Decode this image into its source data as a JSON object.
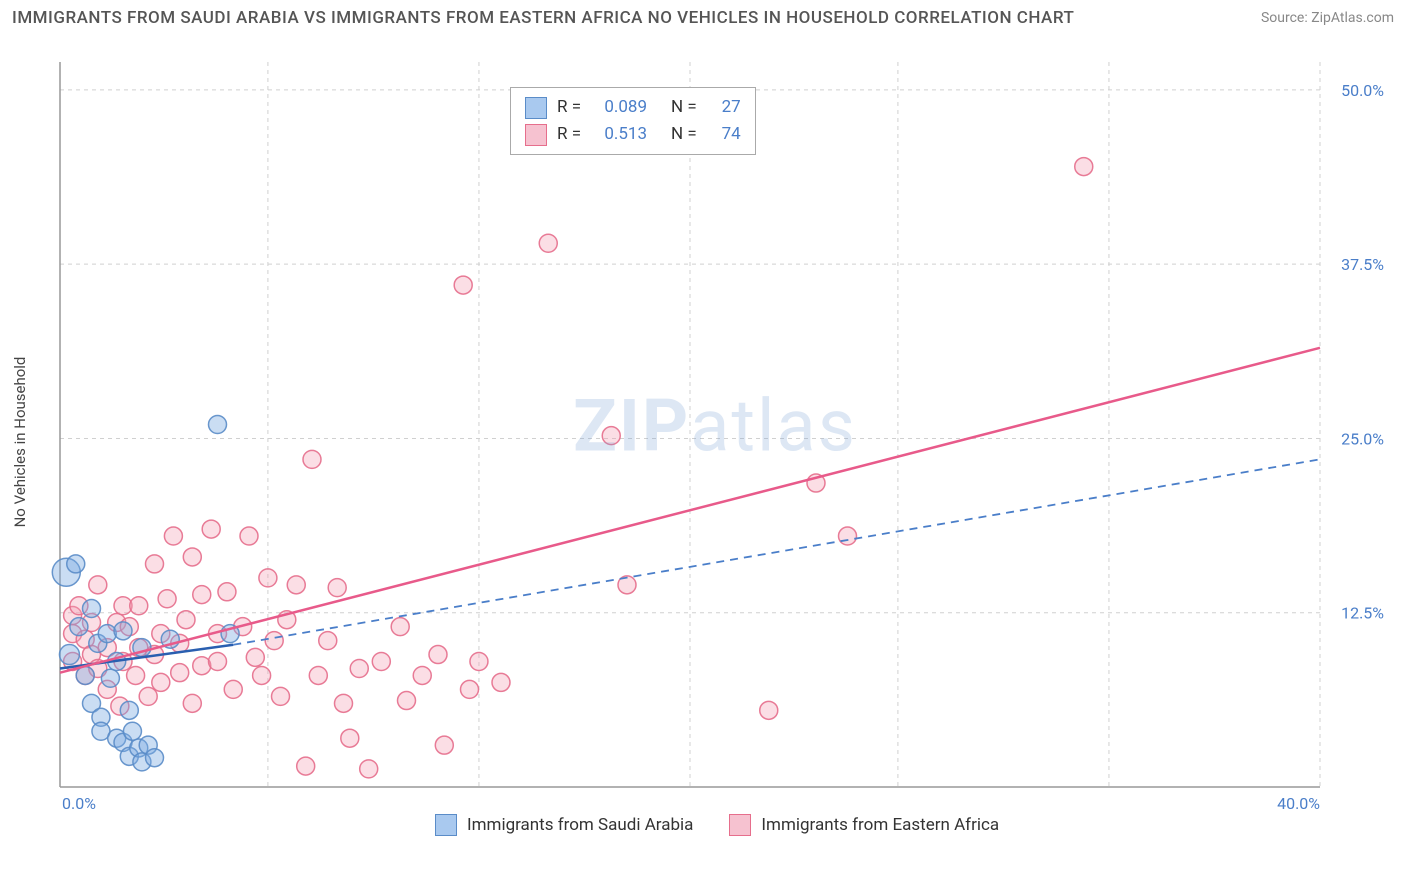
{
  "header": {
    "title": "IMMIGRANTS FROM SAUDI ARABIA VS IMMIGRANTS FROM EASTERN AFRICA NO VEHICLES IN HOUSEHOLD CORRELATION CHART",
    "source": "Source: ZipAtlas.com"
  },
  "chart": {
    "type": "scatter",
    "ylabel": "No Vehicles in Household",
    "watermark": "ZIPatlas",
    "xlim": [
      0,
      40
    ],
    "ylim": [
      0,
      52
    ],
    "x_ticks": [
      {
        "v": 0.0,
        "label": "0.0%"
      },
      {
        "v": 40.0,
        "label": "40.0%"
      }
    ],
    "y_ticks": [
      {
        "v": 12.5,
        "label": "12.5%"
      },
      {
        "v": 25.0,
        "label": "25.0%"
      },
      {
        "v": 37.5,
        "label": "37.5%"
      },
      {
        "v": 50.0,
        "label": "50.0%"
      }
    ],
    "x_grid": [
      0,
      6.6,
      13.3,
      20,
      26.6,
      33.3,
      40
    ],
    "background_color": "#ffffff",
    "grid_color": "#d0d0d0",
    "series": [
      {
        "name": "Immigrants from Saudi Arabia",
        "color_fill": "rgba(122,170,224,0.4)",
        "color_stroke": "rgba(90,140,200,0.9)",
        "swatch_fill": "#a9c9ef",
        "swatch_stroke": "#5a8cc8",
        "marker": "circle",
        "marker_r": 9,
        "R": "0.089",
        "N": "27",
        "trend": {
          "solid": {
            "x1": 0,
            "y1": 8.5,
            "x2": 5.5,
            "y2": 10.2,
            "color": "#2a5fb0",
            "width": 2.5
          },
          "dashed": {
            "x1": 5.5,
            "y1": 10.2,
            "x2": 40,
            "y2": 23.5,
            "color": "#4a7ec9",
            "width": 1.8,
            "dash": "8 6"
          }
        },
        "points": [
          {
            "x": 0.2,
            "y": 15.4,
            "r": 14
          },
          {
            "x": 0.3,
            "y": 9.5,
            "r": 10
          },
          {
            "x": 0.5,
            "y": 16.0,
            "r": 9
          },
          {
            "x": 0.6,
            "y": 11.5,
            "r": 9
          },
          {
            "x": 0.8,
            "y": 8.0,
            "r": 9
          },
          {
            "x": 1.0,
            "y": 12.8,
            "r": 9
          },
          {
            "x": 1.0,
            "y": 6.0,
            "r": 9
          },
          {
            "x": 1.2,
            "y": 10.3,
            "r": 9
          },
          {
            "x": 1.3,
            "y": 5.0,
            "r": 9
          },
          {
            "x": 1.3,
            "y": 4.0,
            "r": 9
          },
          {
            "x": 1.5,
            "y": 11.0,
            "r": 9
          },
          {
            "x": 1.6,
            "y": 7.8,
            "r": 9
          },
          {
            "x": 1.8,
            "y": 9.0,
            "r": 9
          },
          {
            "x": 1.8,
            "y": 3.5,
            "r": 9
          },
          {
            "x": 2.0,
            "y": 11.2,
            "r": 9
          },
          {
            "x": 2.0,
            "y": 3.2,
            "r": 9
          },
          {
            "x": 2.2,
            "y": 5.5,
            "r": 9
          },
          {
            "x": 2.2,
            "y": 2.2,
            "r": 9
          },
          {
            "x": 2.3,
            "y": 4.0,
            "r": 9
          },
          {
            "x": 2.5,
            "y": 2.8,
            "r": 9
          },
          {
            "x": 2.6,
            "y": 10.0,
            "r": 9
          },
          {
            "x": 2.6,
            "y": 1.8,
            "r": 9
          },
          {
            "x": 2.8,
            "y": 3.0,
            "r": 9
          },
          {
            "x": 3.0,
            "y": 2.1,
            "r": 9
          },
          {
            "x": 3.5,
            "y": 10.6,
            "r": 9
          },
          {
            "x": 5.0,
            "y": 26.0,
            "r": 9
          },
          {
            "x": 5.4,
            "y": 11.0,
            "r": 9
          }
        ]
      },
      {
        "name": "Immigrants from Eastern Africa",
        "color_fill": "rgba(244,160,180,0.35)",
        "color_stroke": "rgba(230,110,140,0.9)",
        "swatch_fill": "#f6c2d0",
        "swatch_stroke": "#e66e8c",
        "marker": "circle",
        "marker_r": 9,
        "R": "0.513",
        "N": "74",
        "trend": {
          "solid": {
            "x1": 0,
            "y1": 8.2,
            "x2": 40,
            "y2": 31.5,
            "color": "#e85a8a",
            "width": 2.5
          }
        },
        "points": [
          {
            "x": 0.4,
            "y": 9.0
          },
          {
            "x": 0.4,
            "y": 11.0
          },
          {
            "x": 0.4,
            "y": 12.3
          },
          {
            "x": 0.6,
            "y": 13.0
          },
          {
            "x": 0.8,
            "y": 10.6
          },
          {
            "x": 0.8,
            "y": 8.0
          },
          {
            "x": 1.0,
            "y": 9.5
          },
          {
            "x": 1.0,
            "y": 11.8
          },
          {
            "x": 1.2,
            "y": 14.5
          },
          {
            "x": 1.2,
            "y": 8.5
          },
          {
            "x": 1.5,
            "y": 7.0
          },
          {
            "x": 1.5,
            "y": 10.0
          },
          {
            "x": 1.8,
            "y": 11.8
          },
          {
            "x": 1.9,
            "y": 5.8
          },
          {
            "x": 2.0,
            "y": 9.0
          },
          {
            "x": 2.0,
            "y": 13.0
          },
          {
            "x": 2.2,
            "y": 11.5
          },
          {
            "x": 2.4,
            "y": 8.0
          },
          {
            "x": 2.5,
            "y": 10.0
          },
          {
            "x": 2.5,
            "y": 13.0
          },
          {
            "x": 2.8,
            "y": 6.5
          },
          {
            "x": 3.0,
            "y": 16.0
          },
          {
            "x": 3.0,
            "y": 9.5
          },
          {
            "x": 3.2,
            "y": 11.0
          },
          {
            "x": 3.2,
            "y": 7.5
          },
          {
            "x": 3.4,
            "y": 13.5
          },
          {
            "x": 3.6,
            "y": 18.0
          },
          {
            "x": 3.8,
            "y": 10.3
          },
          {
            "x": 3.8,
            "y": 8.2
          },
          {
            "x": 4.0,
            "y": 12.0
          },
          {
            "x": 4.2,
            "y": 16.5
          },
          {
            "x": 4.2,
            "y": 6.0
          },
          {
            "x": 4.5,
            "y": 8.7
          },
          {
            "x": 4.5,
            "y": 13.8
          },
          {
            "x": 4.8,
            "y": 18.5
          },
          {
            "x": 5.0,
            "y": 11.0
          },
          {
            "x": 5.0,
            "y": 9.0
          },
          {
            "x": 5.3,
            "y": 14.0
          },
          {
            "x": 5.5,
            "y": 7.0
          },
          {
            "x": 5.8,
            "y": 11.5
          },
          {
            "x": 6.0,
            "y": 18.0
          },
          {
            "x": 6.2,
            "y": 9.3
          },
          {
            "x": 6.4,
            "y": 8.0
          },
          {
            "x": 6.6,
            "y": 15.0
          },
          {
            "x": 6.8,
            "y": 10.5
          },
          {
            "x": 7.0,
            "y": 6.5
          },
          {
            "x": 7.2,
            "y": 12.0
          },
          {
            "x": 7.5,
            "y": 14.5
          },
          {
            "x": 7.8,
            "y": 1.5
          },
          {
            "x": 8.0,
            "y": 23.5
          },
          {
            "x": 8.2,
            "y": 8.0
          },
          {
            "x": 8.5,
            "y": 10.5
          },
          {
            "x": 8.8,
            "y": 14.3
          },
          {
            "x": 9.0,
            "y": 6.0
          },
          {
            "x": 9.2,
            "y": 3.5
          },
          {
            "x": 9.5,
            "y": 8.5
          },
          {
            "x": 9.8,
            "y": 1.3
          },
          {
            "x": 10.2,
            "y": 9.0
          },
          {
            "x": 10.8,
            "y": 11.5
          },
          {
            "x": 11.0,
            "y": 6.2
          },
          {
            "x": 11.5,
            "y": 8.0
          },
          {
            "x": 12.0,
            "y": 9.5
          },
          {
            "x": 12.2,
            "y": 3.0
          },
          {
            "x": 12.8,
            "y": 36.0
          },
          {
            "x": 13.0,
            "y": 7.0
          },
          {
            "x": 13.3,
            "y": 9.0
          },
          {
            "x": 14.0,
            "y": 7.5
          },
          {
            "x": 15.5,
            "y": 39.0
          },
          {
            "x": 17.5,
            "y": 25.2
          },
          {
            "x": 18.0,
            "y": 14.5
          },
          {
            "x": 22.5,
            "y": 5.5
          },
          {
            "x": 24.0,
            "y": 21.8
          },
          {
            "x": 25.0,
            "y": 18.0
          },
          {
            "x": 32.5,
            "y": 44.5
          }
        ]
      }
    ],
    "legend_top": {
      "rows": [
        {
          "swatch": 0,
          "r_label": "R =",
          "r_val": "0.089",
          "n_label": "N =",
          "n_val": "27"
        },
        {
          "swatch": 1,
          "r_label": "R =",
          "r_val": "0.513",
          "n_label": "N =",
          "n_val": "74"
        }
      ]
    },
    "legend_bottom": {
      "items": [
        {
          "swatch": 0,
          "label": "Immigrants from Saudi Arabia"
        },
        {
          "swatch": 1,
          "label": "Immigrants from Eastern Africa"
        }
      ]
    }
  }
}
